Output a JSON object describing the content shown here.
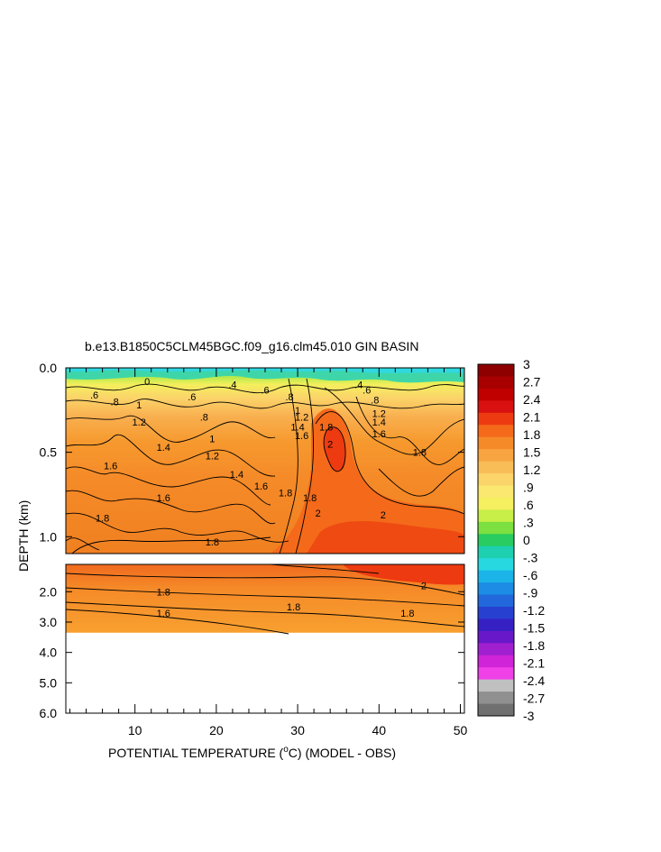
{
  "chart_data": {
    "type": "heatmap",
    "title": "b.e13.B1850C5CLM45BGC.f09_g16.clm45.010 GIN BASIN",
    "xlabel_parts": [
      "POTENTIAL TEMPERATURE (",
      "o",
      "C) (MODEL - OBS)"
    ],
    "ylabel": "DEPTH (km)",
    "x_ticks": [
      "10",
      "20",
      "30",
      "40",
      "50"
    ],
    "x_tick_values": [
      10,
      20,
      30,
      40,
      50
    ],
    "xlim": [
      1.5,
      50.5
    ],
    "upper_panel": {
      "ylim": [
        0.0,
        1.1
      ],
      "y_ticks": [
        "0.0",
        "0.5",
        "1.0"
      ],
      "y_tick_values": [
        0.0,
        0.5,
        1.0
      ]
    },
    "lower_panel": {
      "ylim": [
        1.1,
        6.0
      ],
      "y_ticks": [
        "2.0",
        "3.0",
        "4.0",
        "5.0",
        "6.0"
      ],
      "y_tick_values": [
        2.0,
        3.0,
        4.0,
        5.0,
        6.0
      ],
      "data_bottom_depth": 3.35
    },
    "colorbar": {
      "levels": [
        "3",
        "2.7",
        "2.4",
        "2.1",
        "1.8",
        "1.5",
        "1.2",
        ".9",
        ".6",
        ".3",
        "0",
        "-.3",
        "-.6",
        "-.9",
        "-1.2",
        "-1.5",
        "-1.8",
        "-2.1",
        "-2.4",
        "-2.7",
        "-3"
      ],
      "level_values": [
        3,
        2.7,
        2.4,
        2.1,
        1.8,
        1.5,
        1.2,
        0.9,
        0.6,
        0.3,
        0,
        -0.3,
        -0.6,
        -0.9,
        -1.2,
        -1.5,
        -1.8,
        -2.1,
        -2.4,
        -2.7,
        -3
      ],
      "colors": [
        "#8e0000",
        "#a80000",
        "#c00000",
        "#d81010",
        "#ee3a10",
        "#f46a1a",
        "#f58a28",
        "#f8a440",
        "#f9bd58",
        "#fbd46a",
        "#fbe870",
        "#f4f060",
        "#c8ee48",
        "#7be040",
        "#28cc60",
        "#1ed0b0",
        "#28d8e0",
        "#1ab4e8",
        "#1c8ce4",
        "#2268dc",
        "#2840d0",
        "#3620c4",
        "#6818c8",
        "#a020d0",
        "#d024d8",
        "#f040e8",
        "#c0c0c0",
        "#909090",
        "#707070"
      ]
    },
    "contour_labels_upper": [
      {
        "text": ".6",
        "x": 5.0,
        "y": 0.16
      },
      {
        "text": ".8",
        "x": 7.5,
        "y": 0.2
      },
      {
        "text": "1",
        "x": 10.5,
        "y": 0.22
      },
      {
        "text": "1.2",
        "x": 10.5,
        "y": 0.32
      },
      {
        "text": "1.4",
        "x": 13.5,
        "y": 0.47
      },
      {
        "text": "1.6",
        "x": 7.0,
        "y": 0.58
      },
      {
        "text": ".8",
        "x": 18.5,
        "y": 0.29
      },
      {
        "text": ".6",
        "x": 17.0,
        "y": 0.17
      },
      {
        "text": "1",
        "x": 19.5,
        "y": 0.42
      },
      {
        "text": "1.2",
        "x": 19.5,
        "y": 0.52
      },
      {
        "text": "1.4",
        "x": 22.5,
        "y": 0.63
      },
      {
        "text": "1.6",
        "x": 25.5,
        "y": 0.7
      },
      {
        "text": "1.6",
        "x": 13.5,
        "y": 0.77
      },
      {
        "text": "1.8",
        "x": 6.0,
        "y": 0.89
      },
      {
        "text": "1.8",
        "x": 28.5,
        "y": 0.74
      },
      {
        "text": "1.8",
        "x": 31.5,
        "y": 0.77
      },
      {
        "text": "1.8",
        "x": 19.5,
        "y": 1.03
      },
      {
        "text": ".8",
        "x": 29.0,
        "y": 0.17
      },
      {
        "text": ".6",
        "x": 26.0,
        "y": 0.13
      },
      {
        "text": "1",
        "x": 30.0,
        "y": 0.25
      },
      {
        "text": "1.2",
        "x": 30.5,
        "y": 0.29
      },
      {
        "text": "1.4",
        "x": 30.0,
        "y": 0.35
      },
      {
        "text": "1.6",
        "x": 30.5,
        "y": 0.4
      },
      {
        "text": "1.8",
        "x": 33.5,
        "y": 0.35
      },
      {
        "text": "2",
        "x": 34.0,
        "y": 0.45
      },
      {
        "text": "2",
        "x": 32.5,
        "y": 0.86
      },
      {
        "text": "2",
        "x": 40.5,
        "y": 0.87
      },
      {
        "text": ".6",
        "x": 38.5,
        "y": 0.13
      },
      {
        "text": ".8",
        "x": 39.5,
        "y": 0.19
      },
      {
        "text": "1.2",
        "x": 40.0,
        "y": 0.27
      },
      {
        "text": "1.4",
        "x": 40.0,
        "y": 0.32
      },
      {
        "text": "1.6",
        "x": 40.0,
        "y": 0.39
      },
      {
        "text": "1.8",
        "x": 45.0,
        "y": 0.5
      },
      {
        "text": "0",
        "x": 11.5,
        "y": 0.08
      },
      {
        "text": ".4",
        "x": 22.0,
        "y": 0.1
      },
      {
        "text": ".4",
        "x": 37.5,
        "y": 0.1
      }
    ],
    "contour_labels_lower": [
      {
        "text": "1.8",
        "x": 13.5,
        "y": 2.0
      },
      {
        "text": "1.8",
        "x": 29.5,
        "y": 2.5
      },
      {
        "text": "1.8",
        "x": 43.5,
        "y": 2.7
      },
      {
        "text": "1.6",
        "x": 13.5,
        "y": 2.7
      },
      {
        "text": "2",
        "x": 45.5,
        "y": 1.8
      }
    ]
  }
}
